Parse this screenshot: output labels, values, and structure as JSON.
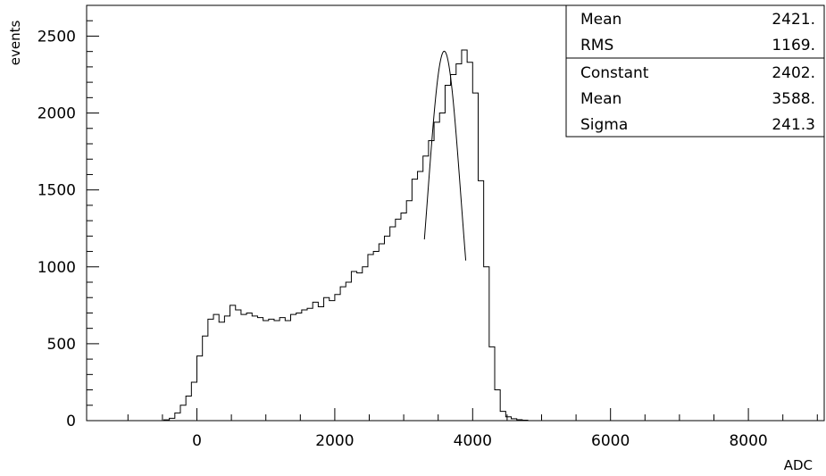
{
  "chart_data": {
    "type": "histogram",
    "xlabel": "ADC",
    "ylabel": "events",
    "xlim": [
      -1600,
      9100
    ],
    "ylim": [
      0,
      2700
    ],
    "bin_width": 80,
    "x_ticks": [
      0,
      2000,
      4000,
      6000,
      8000
    ],
    "y_ticks": [
      0,
      500,
      1000,
      1500,
      2000,
      2500
    ],
    "bins": [
      [
        -480,
        5
      ],
      [
        -400,
        15
      ],
      [
        -320,
        50
      ],
      [
        -240,
        100
      ],
      [
        -160,
        160
      ],
      [
        -80,
        250
      ],
      [
        0,
        420
      ],
      [
        80,
        550
      ],
      [
        160,
        660
      ],
      [
        240,
        690
      ],
      [
        320,
        640
      ],
      [
        400,
        680
      ],
      [
        480,
        750
      ],
      [
        560,
        720
      ],
      [
        640,
        690
      ],
      [
        720,
        700
      ],
      [
        800,
        680
      ],
      [
        880,
        670
      ],
      [
        960,
        650
      ],
      [
        1040,
        660
      ],
      [
        1120,
        650
      ],
      [
        1200,
        670
      ],
      [
        1280,
        650
      ],
      [
        1360,
        690
      ],
      [
        1440,
        700
      ],
      [
        1520,
        720
      ],
      [
        1600,
        730
      ],
      [
        1680,
        770
      ],
      [
        1760,
        740
      ],
      [
        1840,
        800
      ],
      [
        1920,
        780
      ],
      [
        2000,
        820
      ],
      [
        2080,
        870
      ],
      [
        2160,
        900
      ],
      [
        2240,
        970
      ],
      [
        2320,
        960
      ],
      [
        2400,
        1000
      ],
      [
        2480,
        1080
      ],
      [
        2560,
        1100
      ],
      [
        2640,
        1150
      ],
      [
        2720,
        1200
      ],
      [
        2800,
        1260
      ],
      [
        2880,
        1310
      ],
      [
        2960,
        1350
      ],
      [
        3040,
        1430
      ],
      [
        3120,
        1570
      ],
      [
        3200,
        1620
      ],
      [
        3280,
        1720
      ],
      [
        3360,
        1820
      ],
      [
        3440,
        1940
      ],
      [
        3520,
        2000
      ],
      [
        3600,
        2180
      ],
      [
        3680,
        2250
      ],
      [
        3760,
        2320
      ],
      [
        3840,
        2410
      ],
      [
        3920,
        2330
      ],
      [
        4000,
        2130
      ],
      [
        4080,
        1560
      ],
      [
        4160,
        1000
      ],
      [
        4240,
        480
      ],
      [
        4320,
        200
      ],
      [
        4400,
        60
      ],
      [
        4480,
        25
      ],
      [
        4560,
        12
      ],
      [
        4640,
        6
      ],
      [
        4720,
        3
      ]
    ],
    "fit": {
      "function": "gaussian",
      "constant": 2402,
      "mean": 3588,
      "sigma": 241.3,
      "range": [
        3300,
        3900
      ]
    }
  },
  "stats_box": {
    "rows1": [
      {
        "label": "Mean",
        "value": "2421."
      },
      {
        "label": "RMS",
        "value": "1169."
      }
    ],
    "rows2": [
      {
        "label": "Constant",
        "value": "2402."
      },
      {
        "label": "Mean",
        "value": "3588."
      },
      {
        "label": "Sigma",
        "value": "241.3"
      }
    ]
  }
}
